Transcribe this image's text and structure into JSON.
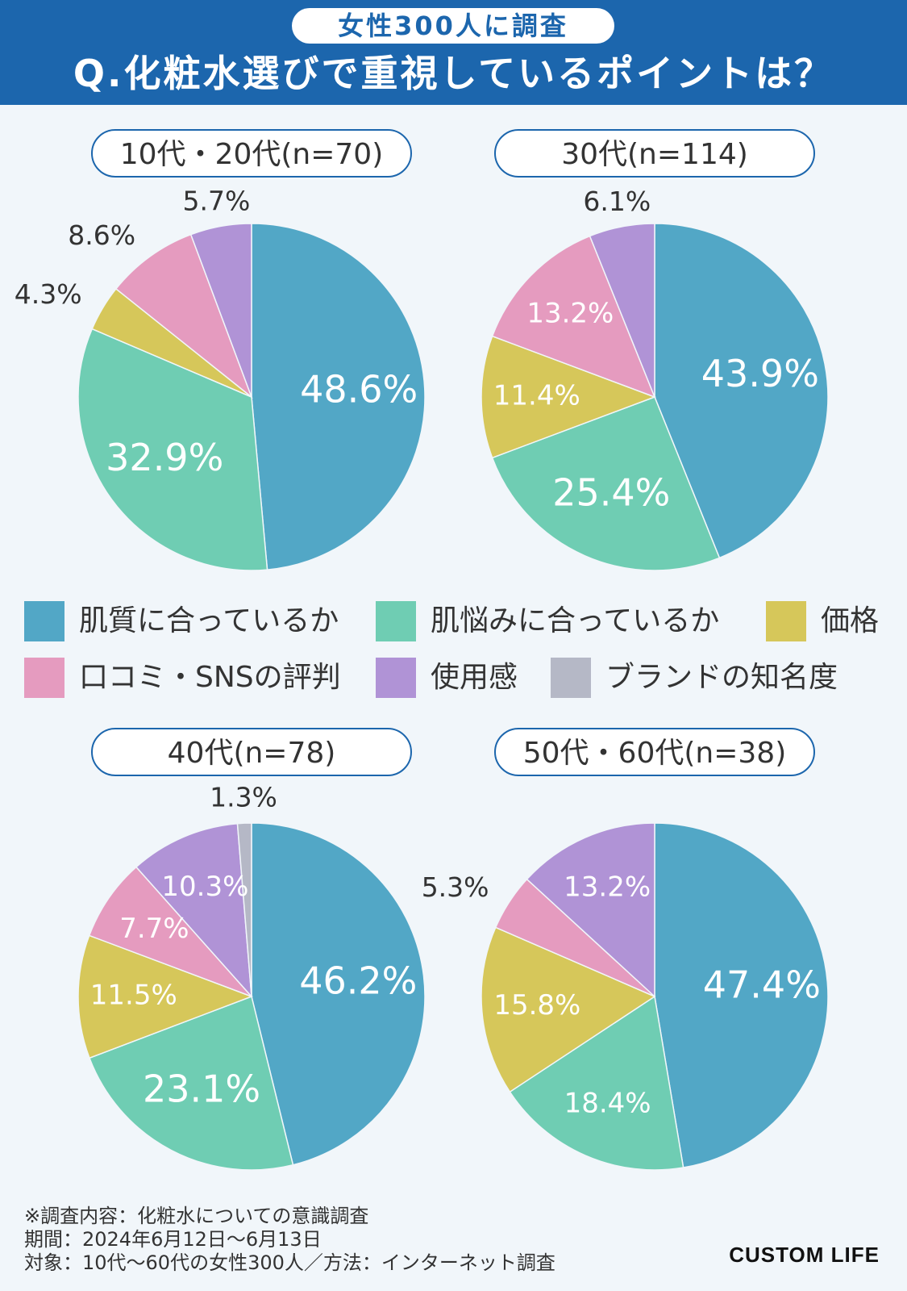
{
  "header": {
    "badge": "女性300人に調査",
    "title": "Q.化粧水選びで重視しているポイントは？"
  },
  "colors": {
    "肌質に合っているか": "#52a7c6",
    "肌悩みに合っているか": "#6fcdb3",
    "価格": "#d6c75a",
    "口コミ・SNSの評判": "#e59bbf",
    "使用感": "#b093d6",
    "ブランドの知名度": "#b5b8c6"
  },
  "legend": [
    "肌質に合っているか",
    "肌悩みに合っているか",
    "価格",
    "口コミ・SNSの評判",
    "使用感",
    "ブランドの知名度"
  ],
  "chart_data": [
    {
      "type": "pie",
      "title": "10代・20代(n=70)",
      "categories": [
        "肌質に合っているか",
        "肌悩みに合っているか",
        "価格",
        "口コミ・SNSの評判",
        "使用感"
      ],
      "values": [
        48.6,
        32.9,
        4.3,
        8.6,
        5.7
      ],
      "labels": [
        "48.6%",
        "32.9%",
        "4.3%",
        "8.6%",
        "5.7%"
      ]
    },
    {
      "type": "pie",
      "title": "30代(n=114)",
      "categories": [
        "肌質に合っているか",
        "肌悩みに合っているか",
        "価格",
        "口コミ・SNSの評判",
        "使用感"
      ],
      "values": [
        43.9,
        25.4,
        11.4,
        13.2,
        6.1
      ],
      "labels": [
        "43.9%",
        "25.4%",
        "11.4%",
        "13.2%",
        "6.1%"
      ]
    },
    {
      "type": "pie",
      "title": "40代(n=78)",
      "categories": [
        "肌質に合っているか",
        "肌悩みに合っているか",
        "価格",
        "口コミ・SNSの評判",
        "使用感",
        "ブランドの知名度"
      ],
      "values": [
        46.2,
        23.1,
        11.5,
        7.7,
        10.3,
        1.3
      ],
      "labels": [
        "46.2%",
        "23.1%",
        "11.5%",
        "7.7%",
        "10.3%",
        "1.3%"
      ]
    },
    {
      "type": "pie",
      "title": "50代・60代(n=38)",
      "categories": [
        "肌質に合っているか",
        "肌悩みに合っているか",
        "価格",
        "口コミ・SNSの評判",
        "使用感"
      ],
      "values": [
        47.4,
        18.4,
        15.8,
        5.3,
        13.2
      ],
      "labels": [
        "47.4%",
        "18.4%",
        "15.8%",
        "5.3%",
        "13.2%"
      ]
    }
  ],
  "footnote": [
    "※調査内容：化粧水についての意識調査",
    "期間：2024年6月12日〜6月13日",
    "対象：10代〜60代の女性300人／方法：インターネット調査"
  ],
  "brand": "CUSTOM LIFE"
}
